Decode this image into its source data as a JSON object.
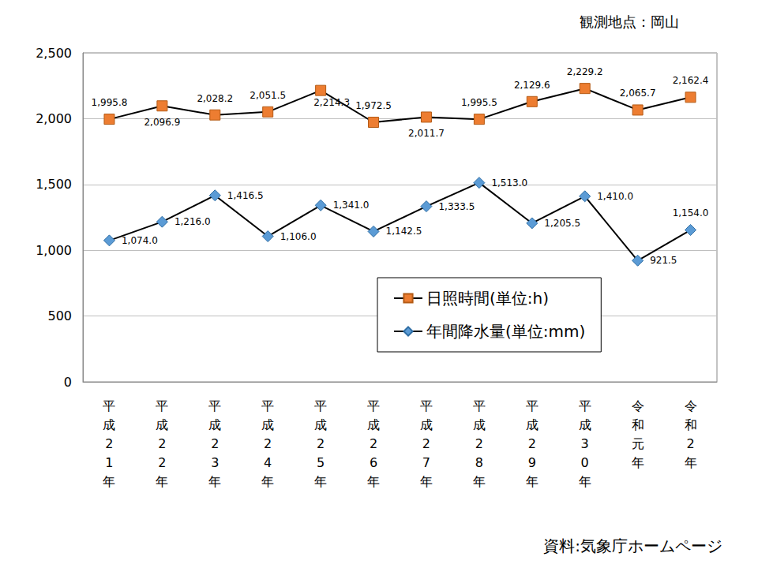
{
  "chart_data": {
    "type": "line",
    "annotations": [
      "観測地点：岡山",
      "資料:気象庁ホームページ"
    ],
    "categories": [
      "平成21年",
      "平成22年",
      "平成23年",
      "平成24年",
      "平成25年",
      "平成26年",
      "平成27年",
      "平成28年",
      "平成29年",
      "平成30年",
      "令和元年",
      "令和2年"
    ],
    "series": [
      {
        "name": "日照時間(単位:h)",
        "color": "#ED7D31",
        "marker": "square",
        "values": [
          1995.8,
          2096.9,
          2028.2,
          2051.5,
          2214.3,
          1972.5,
          2011.7,
          1995.5,
          2129.6,
          2229.2,
          2065.7,
          2162.4
        ],
        "value_labels": [
          "1,995.8",
          "2,096.9",
          "2,028.2",
          "2,051.5",
          "2,214.3",
          "1,972.5",
          "2,011.7",
          "1,995.5",
          "2,129.6",
          "2,229.2",
          "2,065.7",
          "2,162.4"
        ]
      },
      {
        "name": "年間降水量(単位:mm)",
        "color": "#5B9BD5",
        "marker": "diamond",
        "values": [
          1074.0,
          1216.0,
          1416.5,
          1106.0,
          1341.0,
          1142.5,
          1333.5,
          1513.0,
          1205.5,
          1410.0,
          921.5,
          1154.0
        ],
        "value_labels": [
          "1,074.0",
          "1,216.0",
          "1,416.5",
          "1,106.0",
          "1,341.0",
          "1,142.5",
          "1,333.5",
          "1,513.0",
          "1,205.5",
          "1,410.0",
          "921.5",
          "1,154.0"
        ]
      }
    ],
    "ylim": [
      0,
      2500
    ],
    "yticks": [
      0,
      500,
      {
        "value": 1000,
        "label": "1,000"
      },
      {
        "value": 1500,
        "label": "1,500"
      },
      {
        "value": 2000,
        "label": "2,000"
      },
      {
        "value": 2500,
        "label": "2,500"
      }
    ],
    "grid": true,
    "legend": "lower right",
    "data_labels": true
  }
}
